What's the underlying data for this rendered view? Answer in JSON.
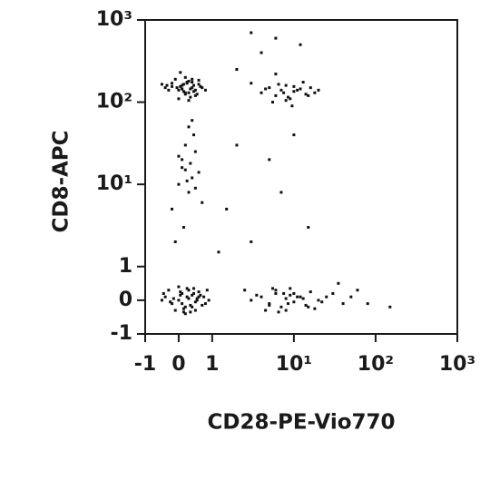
{
  "chart_data": {
    "type": "scatter",
    "x_label": "CD28-PE-Vio770",
    "y_label": "CD8-APC",
    "xscale": "biexponential",
    "yscale": "biexponential",
    "color": "#111111",
    "xlim": [
      -1,
      1000
    ],
    "ylim": [
      -1,
      1000
    ],
    "xticks": [
      -1,
      0,
      1,
      {
        "value": 10,
        "label": "10¹"
      },
      {
        "value": 100,
        "label": "10²"
      },
      {
        "value": 1000,
        "label": "10³"
      }
    ],
    "yticks": [
      -1,
      0,
      1,
      {
        "value": 10,
        "label": "10¹"
      },
      {
        "value": 100,
        "label": "10²"
      },
      {
        "value": 1000,
        "label": "10³"
      }
    ],
    "x": [
      -0.4,
      -0.2,
      0,
      0.1,
      0.2,
      0.3,
      0.4,
      0.5,
      0.6,
      -0.3,
      -0.1,
      0.05,
      0.15,
      0.25,
      0.35,
      0.45,
      0.55,
      0.7,
      -0.5,
      0.8,
      0,
      0.2,
      0.4,
      0.1,
      0.3,
      -0.2,
      0.6,
      0.5,
      0.15,
      0.35,
      -0.05,
      0.25,
      0.45,
      0.65,
      0.05,
      0.3,
      -0.35,
      0.1,
      0.4,
      0.2,
      4,
      5,
      6,
      7,
      8,
      9,
      10,
      12,
      14,
      16,
      3,
      5.5,
      6.5,
      7.5,
      8.5,
      11,
      13,
      18,
      4.5,
      9.5,
      6,
      8,
      10,
      15,
      20,
      -0.4,
      -0.2,
      0,
      0.1,
      0.2,
      0.3,
      0.4,
      0.5,
      0.6,
      0.7,
      -0.3,
      -0.1,
      0.05,
      0.15,
      0.25,
      0.35,
      0.45,
      0.55,
      0.65,
      0.8,
      -0.5,
      0,
      0.2,
      0.4,
      0.6,
      -0.15,
      0.1,
      0.3,
      0.5,
      0.75,
      -0.25,
      0.05,
      0.25,
      0.45,
      0.9,
      -0.45,
      0.15,
      0.35,
      0.55,
      0.85,
      3,
      4,
      5,
      6,
      7,
      8,
      9,
      10,
      12,
      14,
      16,
      18,
      20,
      2.5,
      4.5,
      5.5,
      6.5,
      7.5,
      8.5,
      11,
      13,
      15,
      22,
      3.5,
      6,
      8,
      10,
      5,
      9,
      25,
      0,
      0.2,
      0.4,
      0.1,
      0.3,
      0.5,
      -0.2,
      0.6,
      0.2,
      0.35,
      0.15,
      0.45,
      0,
      0.25,
      0.7,
      -0.1,
      0.3,
      0.5,
      0.1,
      0.4,
      1.5,
      2,
      3,
      5,
      7,
      10,
      15,
      30,
      40,
      60,
      2,
      4,
      6,
      1.2,
      35,
      150,
      80,
      50,
      3,
      12
    ],
    "values": [
      150,
      170,
      140,
      160,
      130,
      180,
      150,
      120,
      165,
      140,
      190,
      155,
      135,
      175,
      145,
      160,
      125,
      150,
      165,
      140,
      110,
      200,
      175,
      145,
      130,
      155,
      185,
      140,
      165,
      115,
      150,
      170,
      135,
      155,
      230,
      105,
      160,
      145,
      190,
      125,
      130,
      150,
      120,
      140,
      160,
      110,
      135,
      145,
      125,
      150,
      170,
      100,
      165,
      130,
      115,
      140,
      175,
      130,
      145,
      90,
      220,
      105,
      155,
      120,
      140,
      0.1,
      -0.1,
      0,
      0.2,
      -0.2,
      0.05,
      0.15,
      -0.05,
      0.1,
      -0.15,
      0.3,
      -0.3,
      0.25,
      -0.25,
      0.35,
      -0.35,
      0.2,
      0,
      0.15,
      -0.1,
      0,
      0.4,
      -0.4,
      -0.2,
      0.25,
      0.05,
      -0.1,
      0.3,
      -0.3,
      0.1,
      -0.05,
      0.15,
      0.1,
      0.35,
      0,
      0.2,
      -0.35,
      -0.15,
      0.05,
      0.3,
      0,
      0.1,
      -0.1,
      0.2,
      -0.2,
      0.05,
      0.15,
      -0.05,
      0.1,
      -0.15,
      0.25,
      -0.25,
      0,
      0.3,
      -0.3,
      0.35,
      -0.35,
      0.2,
      -0.1,
      0.1,
      0.05,
      -0.2,
      -0.05,
      0.15,
      0.3,
      -0.3,
      0.2,
      -0.15,
      0.35,
      0.1,
      10,
      15,
      12,
      20,
      8,
      25,
      5,
      14,
      30,
      18,
      3,
      40,
      22,
      11,
      6,
      2,
      50,
      9,
      16,
      60,
      5,
      30,
      2,
      20,
      8,
      40,
      3,
      0.2,
      -0.1,
      0.3,
      250,
      400,
      600,
      1.5,
      0.5,
      -0.2,
      -0.1,
      0.1,
      700,
      500
    ]
  }
}
